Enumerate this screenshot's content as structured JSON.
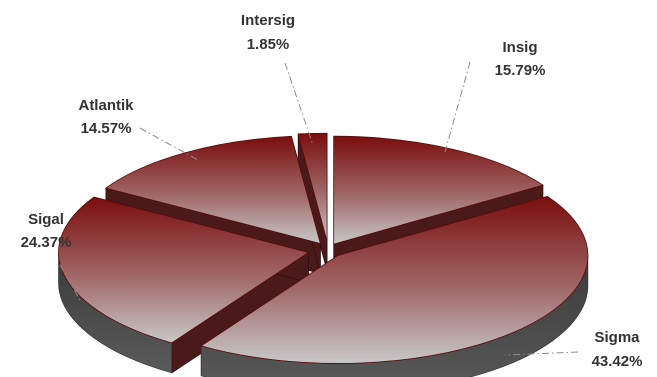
{
  "chart_data": {
    "type": "pie",
    "style": "3d-exploded",
    "legend": "none",
    "slices": [
      {
        "name": "Insig",
        "value": 15.79,
        "label": "15.79%"
      },
      {
        "name": "Sigma",
        "value": 43.42,
        "label": "43.42%"
      },
      {
        "name": "Sigal",
        "value": 24.37,
        "label": "24.37%"
      },
      {
        "name": "Atlantik",
        "value": 14.57,
        "label": "14.57%"
      },
      {
        "name": "Intersig",
        "value": 1.85,
        "label": "1.85%"
      }
    ],
    "colors": {
      "gradient_top": "#7a0d0d",
      "gradient_bottom": "#c4c4c4",
      "side": "#4a4a4a",
      "side_edge": "#380808"
    }
  }
}
